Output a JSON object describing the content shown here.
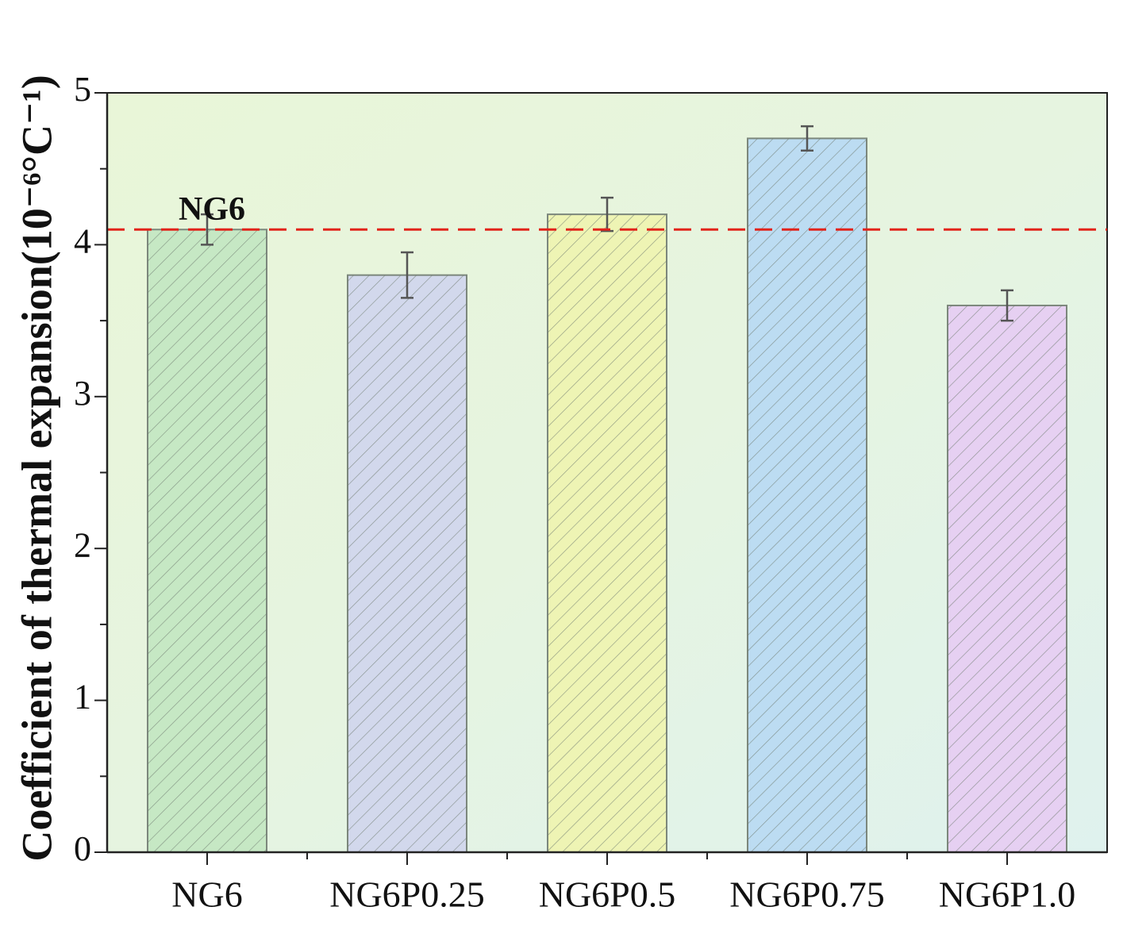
{
  "chart_data": {
    "type": "bar",
    "y_label": "Coefficient of thermal expansion(10⁻⁶°C⁻¹)",
    "categories": [
      "NG6",
      "NG6P0.25",
      "NG6P0.5",
      "NG6P0.75",
      "NG6P1.0"
    ],
    "values": [
      4.1,
      3.8,
      4.2,
      4.7,
      3.6
    ],
    "errors": [
      0.1,
      0.15,
      0.11,
      0.08,
      0.1
    ],
    "colors": [
      "#c6e8c4",
      "#d2d8ec",
      "#eef4b4",
      "#bcdcf2",
      "#e6d0f2"
    ],
    "ylim": [
      0,
      5
    ],
    "yticks": [
      0,
      1,
      2,
      3,
      4,
      5
    ],
    "yminorticks": [
      0.5,
      1.5,
      2.5,
      3.5,
      4.5
    ],
    "reference_line": {
      "value": 4.1,
      "label": "NG6",
      "color": "#e2231a"
    },
    "hatch": true
  }
}
